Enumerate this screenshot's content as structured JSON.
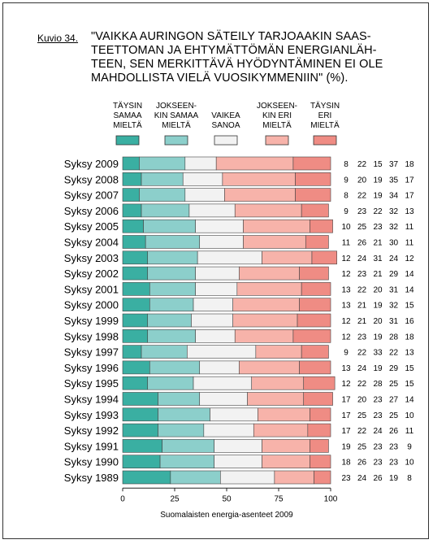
{
  "figure_label": "Kuvio 34.",
  "title": "\"VAIKKA AURINGON SÄTEILY TARJOAAKIN SAAS-\nTEETTOMAN JA EHTYMÄTTÖMÄN ENERGIANLÄH-\nTEEN, SEN MERKITTÄVÄ HYÖDYNTÄMINEN EI OLE\nMAHDOLLISTA VIELÄ VUOSIKYMMENIIN\" (%).",
  "source": "Suomalaisten energia-asenteet 2009",
  "chart_data": {
    "type": "bar",
    "stacked": true,
    "orientation": "horizontal",
    "xlim": [
      0,
      100
    ],
    "xticks": [
      0,
      25,
      50,
      75,
      100
    ],
    "categories": [
      "Syksy 2009",
      "Syksy 2008",
      "Syksy 2007",
      "Syksy 2006",
      "Syksy 2005",
      "Syksy 2004",
      "Syksy 2003",
      "Syksy 2002",
      "Syksy 2001",
      "Syksy 2000",
      "Syksy 1999",
      "Syksy 1998",
      "Syksy 1997",
      "Syksy 1996",
      "Syksy 1995",
      "Syksy 1994",
      "Syksy 1993",
      "Syksy 1992",
      "Syksy 1991",
      "Syksy 1990",
      "Syksy 1989"
    ],
    "series": [
      {
        "name": "TÄYSIN\nSAMAA\nMIELTÄ",
        "color": "#3aafa2",
        "values": [
          8,
          9,
          8,
          9,
          10,
          11,
          12,
          12,
          13,
          13,
          12,
          12,
          9,
          13,
          12,
          17,
          17,
          17,
          19,
          18,
          23
        ]
      },
      {
        "name": "JOKSEEN-\nKIN SAMAA\nMIELTÄ",
        "color": "#8ccfcb",
        "values": [
          22,
          20,
          22,
          23,
          25,
          26,
          24,
          23,
          22,
          21,
          21,
          23,
          22,
          24,
          22,
          20,
          25,
          22,
          25,
          26,
          24
        ]
      },
      {
        "name": "VAIKEA\nSANOA",
        "color": "#f2f2f2",
        "values": [
          15,
          19,
          19,
          22,
          23,
          21,
          31,
          21,
          20,
          19,
          20,
          19,
          33,
          19,
          28,
          23,
          23,
          24,
          23,
          23,
          26
        ]
      },
      {
        "name": "JOKSEEN-\nKIN ERI\nMIELTÄ",
        "color": "#f7b3aa",
        "values": [
          37,
          35,
          34,
          32,
          32,
          30,
          24,
          29,
          31,
          32,
          31,
          28,
          22,
          29,
          25,
          27,
          25,
          26,
          23,
          23,
          19
        ]
      },
      {
        "name": "TÄYSIN\nERI\nMIELTÄ",
        "color": "#ef8c84",
        "values": [
          18,
          17,
          17,
          13,
          11,
          11,
          12,
          14,
          14,
          15,
          16,
          18,
          13,
          15,
          15,
          14,
          10,
          11,
          9,
          10,
          8
        ]
      }
    ]
  }
}
